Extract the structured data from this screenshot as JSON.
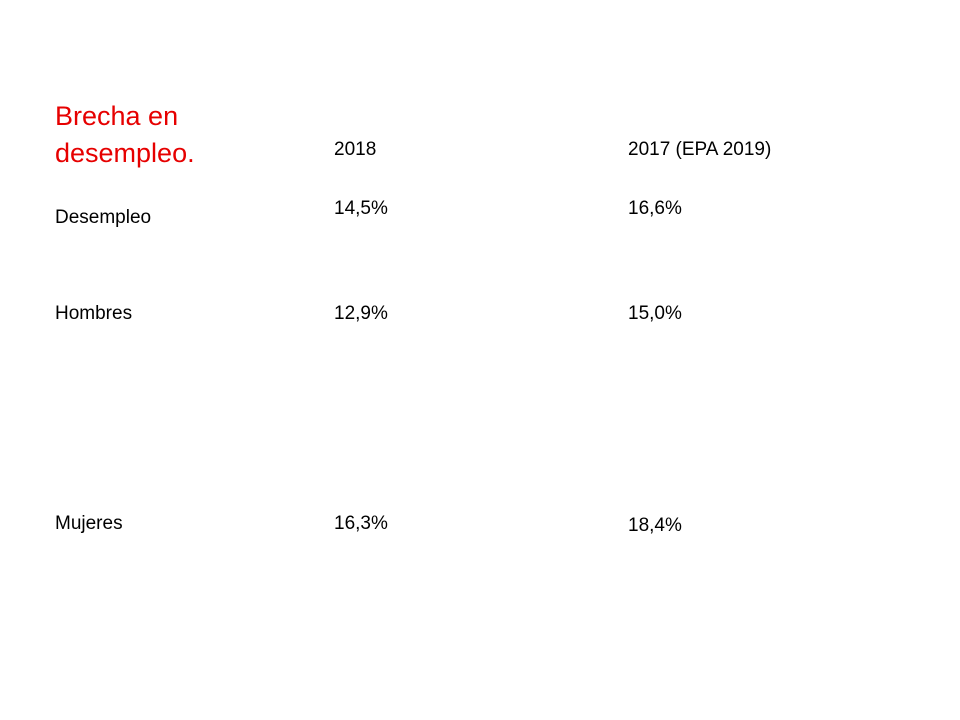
{
  "title": "Brecha en desempleo.",
  "table": {
    "headers": [
      "2018",
      "2017 (EPA 2019)"
    ],
    "rows": [
      {
        "label": "Desempleo",
        "values": [
          "14,5%",
          "16,6%"
        ]
      },
      {
        "label": "Hombres",
        "values": [
          "12,9%",
          "15,0%"
        ]
      },
      {
        "label": "Mujeres",
        "values": [
          "16,3%",
          "18,4%"
        ]
      }
    ]
  },
  "colors": {
    "title": "#e60000",
    "text": "#000000",
    "background": "#ffffff"
  }
}
